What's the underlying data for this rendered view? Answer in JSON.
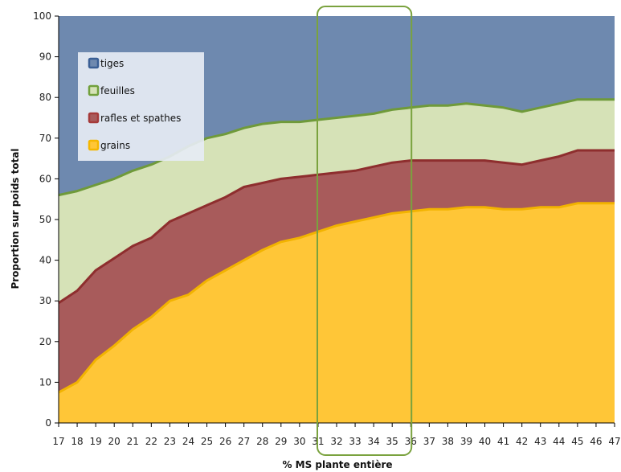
{
  "chart_data": {
    "type": "area",
    "stacked": true,
    "xlabel": "% MS plante entière",
    "ylabel": "Proportion sur poids total",
    "ylim": [
      0,
      100
    ],
    "yticks": [
      0,
      10,
      20,
      30,
      40,
      50,
      60,
      70,
      80,
      90,
      100
    ],
    "x": [
      17,
      18,
      19,
      20,
      21,
      22,
      23,
      24,
      25,
      26,
      27,
      28,
      29,
      30,
      31,
      32,
      33,
      34,
      35,
      36,
      37,
      38,
      39,
      40,
      41,
      42,
      43,
      44,
      45,
      46,
      47
    ],
    "x_labels": [
      "17",
      "18",
      "19",
      "20",
      "21",
      "22",
      "23",
      "24",
      "25",
      "26",
      "27",
      "28",
      "29",
      "30",
      "31",
      "32",
      "33",
      "34",
      "35",
      "36",
      "37",
      "38",
      "39",
      "40",
      "41",
      "42",
      "43",
      "44",
      "45",
      "46",
      "47"
    ],
    "legend_position": "top-left",
    "highlight_range": [
      32,
      35
    ],
    "series": [
      {
        "name": "grains",
        "color": "#FFC637",
        "top": [
          7.5,
          10,
          15.5,
          19,
          23,
          26,
          30,
          31.5,
          35,
          37.5,
          40,
          42.5,
          44.5,
          45.5,
          47,
          48.5,
          49.5,
          50.5,
          51.5,
          52,
          52.5,
          52.5,
          53,
          53,
          52.5,
          52.5,
          53,
          53,
          54,
          54,
          54
        ]
      },
      {
        "name": "rafles et spathes",
        "color": "#A85B5B",
        "top": [
          29.5,
          32.5,
          37.5,
          40.5,
          43.5,
          45.5,
          49.5,
          51.5,
          53.5,
          55.5,
          58,
          59,
          60,
          60.5,
          61,
          61.5,
          62,
          63,
          64,
          64.5,
          64.5,
          64.5,
          64.5,
          64.5,
          64,
          63.5,
          64.5,
          65.5,
          67,
          67,
          67
        ]
      },
      {
        "name": "feuilles",
        "color": "#D6E2B7",
        "top": [
          56,
          57,
          58.5,
          60,
          62,
          63.5,
          65.5,
          68,
          70,
          71,
          72.5,
          73.5,
          74,
          74,
          74.5,
          75,
          75.5,
          76,
          77,
          77.5,
          78,
          78,
          78.5,
          78,
          77.5,
          76.5,
          77.5,
          78.5,
          79.5,
          79.5,
          79.5
        ]
      },
      {
        "name": "tiges",
        "color": "#6E89AF",
        "top": [
          100,
          100,
          100,
          100,
          100,
          100,
          100,
          100,
          100,
          100,
          100,
          100,
          100,
          100,
          100,
          100,
          100,
          100,
          100,
          100,
          100,
          100,
          100,
          100,
          100,
          100,
          100,
          100,
          100,
          100,
          100
        ]
      }
    ],
    "legend_order": [
      "tiges",
      "feuilles",
      "rafles et spathes",
      "grains"
    ],
    "legend_marker_colors": {
      "tiges": "#3A5F95",
      "feuilles": "#71A03C",
      "rafles et spathes": "#A53A3A",
      "grains": "#F5B700"
    },
    "line_colors": {
      "grains": "#F2B300",
      "rafles et spathes": "#8E2E2E",
      "feuilles": "#6F9A3A",
      "tiges": "#4A6F9E"
    },
    "highlight_color": "#7AA23E"
  }
}
